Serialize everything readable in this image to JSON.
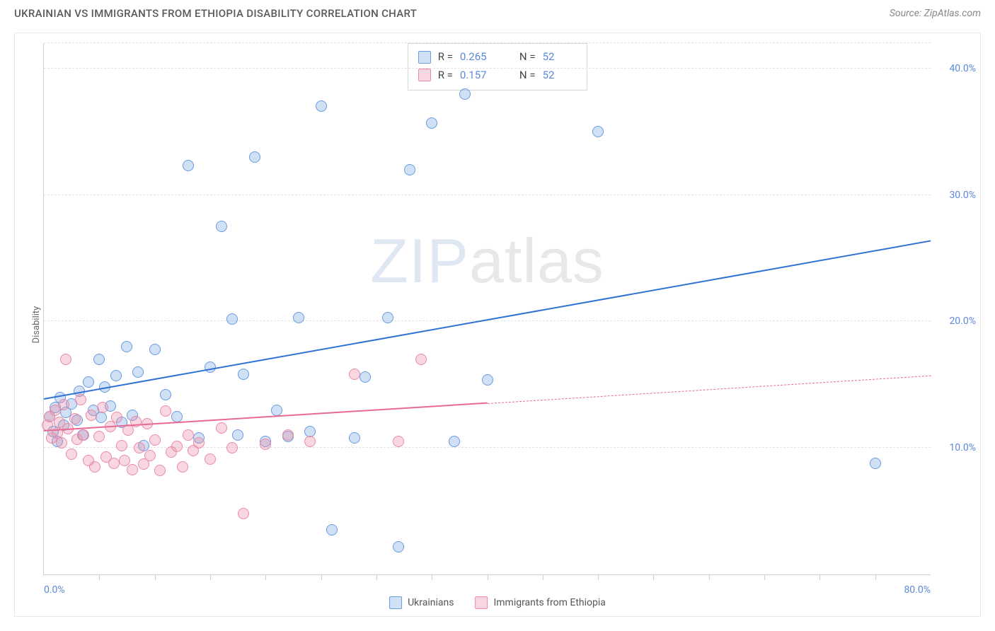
{
  "header": {
    "title": "UKRAINIAN VS IMMIGRANTS FROM ETHIOPIA DISABILITY CORRELATION CHART",
    "source_label": "Source: ZipAtlas.com"
  },
  "chart": {
    "type": "scatter",
    "ylabel": "Disability",
    "watermark": {
      "bold": "ZIP",
      "thin": "atlas"
    },
    "background_color": "#ffffff",
    "grid_color": "#e4e4e4",
    "axis_color": "#cfcfcf",
    "tick_label_color": "#5b8ad6",
    "xlim": [
      0,
      80
    ],
    "ylim": [
      0,
      42
    ],
    "yticks": [
      10,
      20,
      30,
      40
    ],
    "ytick_labels": [
      "10.0%",
      "20.0%",
      "30.0%",
      "40.0%"
    ],
    "xticks_minor": [
      5,
      10,
      15,
      20,
      25,
      30,
      35,
      40,
      45,
      50,
      55,
      60,
      65,
      70,
      75
    ],
    "xtick_labels": [
      {
        "pos": 0,
        "text": "0.0%"
      },
      {
        "pos": 80,
        "text": "80.0%"
      }
    ],
    "marker_radius": 8,
    "marker_border_width": 1.3,
    "series": [
      {
        "id": "ukrainians",
        "label": "Ukrainians",
        "fill": "rgba(120,165,225,0.35)",
        "stroke": "#6a9be0",
        "trend_color": "#2f72d4",
        "trend_width": 2.3,
        "trend": {
          "x1": 0,
          "y1": 13.8,
          "x2": 80,
          "y2": 26.3,
          "solid_to_x": 80
        },
        "stats": {
          "R": "0.265",
          "N": "52"
        },
        "points": [
          [
            0.5,
            12.5
          ],
          [
            0.8,
            11.3
          ],
          [
            1.0,
            13.2
          ],
          [
            1.2,
            10.5
          ],
          [
            1.5,
            14.0
          ],
          [
            1.8,
            11.8
          ],
          [
            2.0,
            12.8
          ],
          [
            2.5,
            13.5
          ],
          [
            3.0,
            12.2
          ],
          [
            3.2,
            14.5
          ],
          [
            3.5,
            11.0
          ],
          [
            4.0,
            15.2
          ],
          [
            4.5,
            13.0
          ],
          [
            5.0,
            17.0
          ],
          [
            5.2,
            12.4
          ],
          [
            5.5,
            14.8
          ],
          [
            6.0,
            13.3
          ],
          [
            6.5,
            15.7
          ],
          [
            7.0,
            12.0
          ],
          [
            7.5,
            18.0
          ],
          [
            8.0,
            12.6
          ],
          [
            8.5,
            16.0
          ],
          [
            9.0,
            10.2
          ],
          [
            10.0,
            17.8
          ],
          [
            11.0,
            14.2
          ],
          [
            12.0,
            12.5
          ],
          [
            13.0,
            32.3
          ],
          [
            14.0,
            10.8
          ],
          [
            15.0,
            16.4
          ],
          [
            16.0,
            27.5
          ],
          [
            17.0,
            20.2
          ],
          [
            17.5,
            11.0
          ],
          [
            18.0,
            15.8
          ],
          [
            19.0,
            33.0
          ],
          [
            20.0,
            10.5
          ],
          [
            21.0,
            13.0
          ],
          [
            22.0,
            10.9
          ],
          [
            23.0,
            20.3
          ],
          [
            24.0,
            11.3
          ],
          [
            25.0,
            37.0
          ],
          [
            26.0,
            3.5
          ],
          [
            28.0,
            10.8
          ],
          [
            29.0,
            15.6
          ],
          [
            31.0,
            20.3
          ],
          [
            32.0,
            2.2
          ],
          [
            33.0,
            32.0
          ],
          [
            35.0,
            35.7
          ],
          [
            37.0,
            10.5
          ],
          [
            38.0,
            38.0
          ],
          [
            40.0,
            15.4
          ],
          [
            50.0,
            35.0
          ],
          [
            75.0,
            8.8
          ]
        ]
      },
      {
        "id": "ethiopia",
        "label": "Immigrants from Ethiopia",
        "fill": "rgba(235,140,165,0.35)",
        "stroke": "#ea8aa8",
        "trend_color": "#e86a92",
        "trend_width": 2,
        "trend": {
          "x1": 0,
          "y1": 11.3,
          "x2": 80,
          "y2": 15.7,
          "solid_to_x": 40
        },
        "stats": {
          "R": "0.157",
          "N": "52"
        },
        "points": [
          [
            0.3,
            11.8
          ],
          [
            0.5,
            12.5
          ],
          [
            0.7,
            10.8
          ],
          [
            1.0,
            13.0
          ],
          [
            1.2,
            11.2
          ],
          [
            1.4,
            12.0
          ],
          [
            1.6,
            10.4
          ],
          [
            1.8,
            13.4
          ],
          [
            2.0,
            17.0
          ],
          [
            2.2,
            11.5
          ],
          [
            2.5,
            9.5
          ],
          [
            2.8,
            12.3
          ],
          [
            3.0,
            10.7
          ],
          [
            3.3,
            13.8
          ],
          [
            3.6,
            11.0
          ],
          [
            4.0,
            9.0
          ],
          [
            4.3,
            12.6
          ],
          [
            4.6,
            8.5
          ],
          [
            5.0,
            10.9
          ],
          [
            5.3,
            13.2
          ],
          [
            5.6,
            9.3
          ],
          [
            6.0,
            11.7
          ],
          [
            6.3,
            8.8
          ],
          [
            6.6,
            12.4
          ],
          [
            7.0,
            10.2
          ],
          [
            7.3,
            9.0
          ],
          [
            7.6,
            11.4
          ],
          [
            8.0,
            8.3
          ],
          [
            8.3,
            12.1
          ],
          [
            8.6,
            10.0
          ],
          [
            9.0,
            8.7
          ],
          [
            9.3,
            11.9
          ],
          [
            9.6,
            9.4
          ],
          [
            10.0,
            10.6
          ],
          [
            10.5,
            8.2
          ],
          [
            11.0,
            12.9
          ],
          [
            11.5,
            9.7
          ],
          [
            12.0,
            10.1
          ],
          [
            12.5,
            8.5
          ],
          [
            13.0,
            11.0
          ],
          [
            13.5,
            9.8
          ],
          [
            14.0,
            10.4
          ],
          [
            15.0,
            9.1
          ],
          [
            16.0,
            11.6
          ],
          [
            17.0,
            10.0
          ],
          [
            18.0,
            4.8
          ],
          [
            20.0,
            10.3
          ],
          [
            22.0,
            11.0
          ],
          [
            24.0,
            10.5
          ],
          [
            28.0,
            15.8
          ],
          [
            32.0,
            10.5
          ],
          [
            34.0,
            17.0
          ]
        ]
      }
    ],
    "stats_box": {
      "R_label": "R =",
      "N_label": "N ="
    }
  }
}
